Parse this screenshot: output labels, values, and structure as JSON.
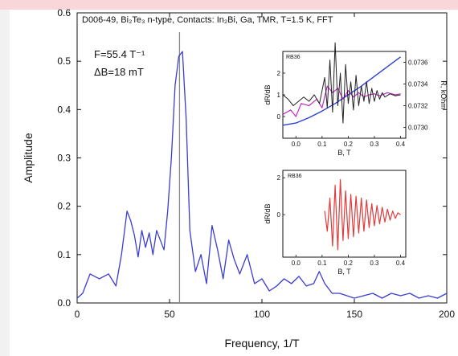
{
  "colors": {
    "main_line": "#3b3bd6",
    "marker_line": "#888888",
    "inset_blue": "#2b3fd6",
    "inset_magenta": "#c12ac7",
    "inset_black": "#222222",
    "inset_red": "#e23b3b",
    "top_band": "#f9d7d9"
  },
  "chart_data": [
    {
      "type": "line",
      "title": "D006-49, Bi₂Te₃ n-type, Contacts: In₂Bi, Ga, TMR, T=1.5 K, FFT",
      "xlabel": "Frequency, 1/T",
      "ylabel": "Amplitude",
      "xlim": [
        0,
        200
      ],
      "ylim": [
        0,
        0.6
      ],
      "x_ticks": [
        "0",
        "50",
        "100",
        "150",
        "200"
      ],
      "y_ticks": [
        "0.0",
        "0.1",
        "0.2",
        "0.3",
        "0.4",
        "0.5",
        "0.6"
      ],
      "x_tick_values": [
        0,
        50,
        100,
        150,
        200
      ],
      "y_tick_values": [
        0,
        0.1,
        0.2,
        0.3,
        0.4,
        0.5,
        0.6
      ],
      "annotations": [
        "F=55.4 T⁻¹",
        "ΔB=18 mT"
      ],
      "marker_line_x": 55.4,
      "series": [
        {
          "x": [
            0,
            3,
            7,
            12,
            17,
            21,
            24,
            27,
            29,
            31,
            33,
            35,
            37,
            39,
            41,
            43,
            45,
            47,
            49,
            51,
            53,
            55,
            57,
            59,
            61,
            64,
            67,
            70,
            73,
            76,
            79,
            82,
            85,
            88,
            92,
            96,
            100,
            104,
            108,
            112,
            116,
            120,
            124,
            128,
            131,
            134,
            138,
            142,
            146,
            150,
            155,
            160,
            165,
            170,
            175,
            180,
            185,
            190,
            195,
            200
          ],
          "values": [
            0.01,
            0.02,
            0.06,
            0.05,
            0.06,
            0.035,
            0.1,
            0.19,
            0.17,
            0.14,
            0.095,
            0.15,
            0.115,
            0.145,
            0.1,
            0.15,
            0.13,
            0.11,
            0.19,
            0.3,
            0.45,
            0.51,
            0.52,
            0.38,
            0.15,
            0.065,
            0.1,
            0.04,
            0.16,
            0.11,
            0.05,
            0.13,
            0.09,
            0.06,
            0.1,
            0.04,
            0.05,
            0.025,
            0.035,
            0.05,
            0.04,
            0.055,
            0.035,
            0.04,
            0.065,
            0.04,
            0.02,
            0.02,
            0.015,
            0.01,
            0.015,
            0.02,
            0.01,
            0.02,
            0.015,
            0.02,
            0.01,
            0.015,
            0.01,
            0.02
          ]
        }
      ]
    },
    {
      "type": "line",
      "title": "RB36",
      "xlabel": "B, T",
      "ylabel": "dR/dB",
      "ylabel_right": "R, kOhm",
      "xlim": [
        -0.05,
        0.42
      ],
      "ylim": [
        -1,
        3
      ],
      "ylim_right": [
        0.0729,
        0.0737
      ],
      "x_ticks": [
        "0.0",
        "0.1",
        "0.2",
        "0.3",
        "0.4"
      ],
      "x_tick_values": [
        0.0,
        0.1,
        0.2,
        0.3,
        0.4
      ],
      "y_ticks": [
        "0",
        "1",
        "2"
      ],
      "y_tick_values": [
        0,
        1,
        2
      ],
      "y_right_ticks": [
        "0.0730",
        "0.0732",
        "0.0734",
        "0.0736"
      ],
      "y_right_tick_values": [
        0.073,
        0.0732,
        0.0734,
        0.0736
      ],
      "series": [
        {
          "axis": "right",
          "x": [
            -0.05,
            0.0,
            0.05,
            0.1,
            0.15,
            0.2,
            0.25,
            0.3,
            0.35,
            0.4
          ],
          "values": [
            0.07302,
            0.07304,
            0.07309,
            0.07315,
            0.07322,
            0.0733,
            0.07338,
            0.07347,
            0.07356,
            0.07365
          ]
        },
        {
          "axis": "left",
          "x": [
            -0.05,
            -0.02,
            0.0,
            0.02,
            0.05,
            0.08,
            0.1,
            0.12,
            0.14,
            0.16,
            0.18,
            0.2,
            0.22,
            0.24,
            0.26,
            0.28,
            0.3,
            0.32,
            0.35,
            0.38,
            0.4
          ],
          "values": [
            0.1,
            0.3,
            0.0,
            0.6,
            0.5,
            0.8,
            0.4,
            1.4,
            1.1,
            1.3,
            0.8,
            1.2,
            0.9,
            1.1,
            0.9,
            1.0,
            1.05,
            0.95,
            1.1,
            1.0,
            1.05
          ]
        },
        {
          "axis": "left",
          "x": [
            -0.05,
            -0.03,
            -0.01,
            0.01,
            0.03,
            0.05,
            0.07,
            0.09,
            0.11,
            0.12,
            0.13,
            0.14,
            0.15,
            0.16,
            0.17,
            0.18,
            0.19,
            0.2,
            0.21,
            0.22,
            0.23,
            0.24,
            0.25,
            0.26,
            0.27,
            0.28,
            0.29,
            0.3,
            0.31,
            0.32,
            0.33,
            0.34,
            0.36,
            0.38,
            0.4
          ],
          "values": [
            1.0,
            0.8,
            0.5,
            0.7,
            0.9,
            0.7,
            1.0,
            0.6,
            1.8,
            0.4,
            2.6,
            0.2,
            3.4,
            0.5,
            2.0,
            -0.3,
            2.4,
            0.6,
            1.6,
            0.3,
            1.9,
            0.5,
            1.4,
            0.7,
            1.6,
            0.6,
            1.3,
            0.7,
            1.2,
            0.8,
            1.1,
            0.9,
            1.05,
            0.95,
            1.0
          ]
        }
      ]
    },
    {
      "type": "line",
      "title": "RB36",
      "xlabel": "B, T",
      "ylabel": "dR/dB",
      "xlim": [
        -0.05,
        0.42
      ],
      "ylim": [
        -2.3,
        2.4
      ],
      "x_ticks": [
        "0.0",
        "0.1",
        "0.2",
        "0.3",
        "0.4"
      ],
      "x_tick_values": [
        0.0,
        0.1,
        0.2,
        0.3,
        0.4
      ],
      "y_ticks": [
        "2",
        "0"
      ],
      "y_tick_values": [
        2,
        0
      ],
      "series": [
        {
          "x": [
            0.11,
            0.12,
            0.13,
            0.14,
            0.15,
            0.16,
            0.17,
            0.18,
            0.19,
            0.2,
            0.21,
            0.22,
            0.23,
            0.24,
            0.25,
            0.26,
            0.27,
            0.28,
            0.29,
            0.3,
            0.31,
            0.32,
            0.33,
            0.34,
            0.35,
            0.36,
            0.37,
            0.38,
            0.39,
            0.4
          ],
          "values": [
            0.2,
            -0.9,
            0.9,
            -1.7,
            1.6,
            -1.9,
            1.9,
            -1.4,
            1.3,
            -1.3,
            1.1,
            -1.2,
            1.0,
            -1.0,
            0.9,
            -0.9,
            0.8,
            -0.7,
            0.6,
            -0.6,
            0.5,
            -0.5,
            0.4,
            -0.4,
            0.3,
            -0.3,
            0.2,
            -0.2,
            0.1,
            0.0
          ]
        }
      ]
    }
  ]
}
